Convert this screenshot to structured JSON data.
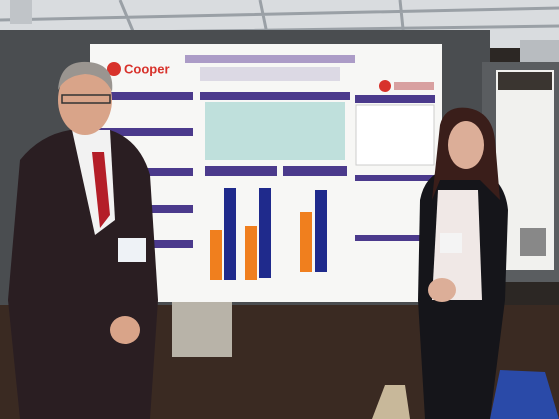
{
  "poster": {
    "logo": "Cooper"
  }
}
